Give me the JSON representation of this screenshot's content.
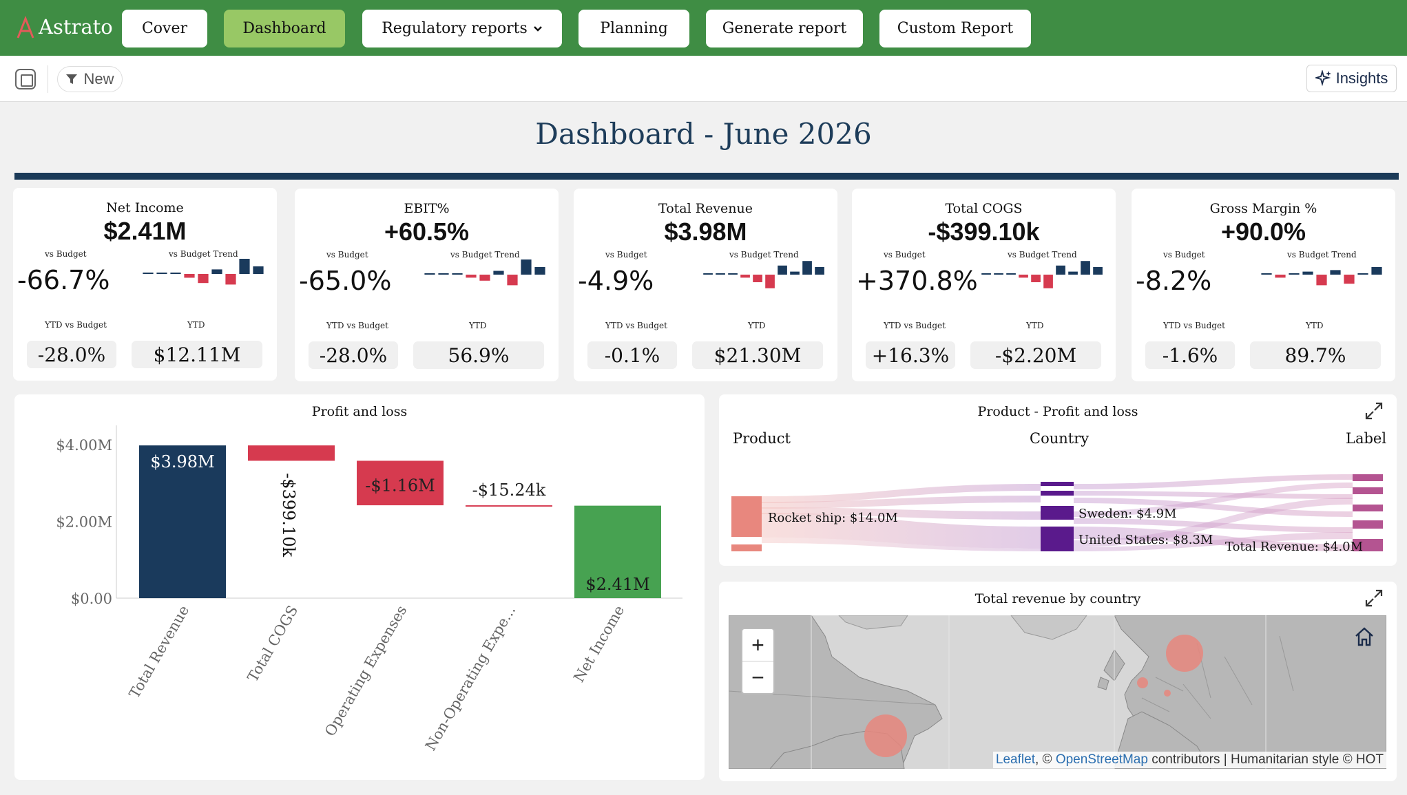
{
  "app": {
    "logo_text": "Astrato"
  },
  "nav": {
    "cover": "Cover",
    "dashboard": "Dashboard",
    "regulatory": "Regulatory reports",
    "planning": "Planning",
    "generate": "Generate report",
    "custom": "Custom Report"
  },
  "toolbar": {
    "new_label": "New",
    "insights_label": "Insights"
  },
  "page": {
    "title": "Dashboard - June 2026"
  },
  "kpi_labels": {
    "vs_budget": "vs Budget",
    "vs_budget_trend": "vs Budget Trend",
    "ytd_vs_budget": "YTD vs Budget",
    "ytd": "YTD"
  },
  "kpis": [
    {
      "name": "Net Income",
      "value": "$2.41M",
      "vs_budget": "-66.7%",
      "ytd_vs_budget": "-28.0%",
      "ytd": "$12.11M",
      "trend": [
        0,
        0,
        0,
        -0.25,
        -0.6,
        0.3,
        -0.7,
        1.0,
        0.5
      ]
    },
    {
      "name": "EBIT%",
      "value": "+60.5%",
      "vs_budget": "-65.0%",
      "ytd_vs_budget": "-28.0%",
      "ytd": "56.9%",
      "trend": [
        0,
        0,
        0,
        -0.2,
        -0.4,
        0.25,
        -0.7,
        1.0,
        0.5
      ]
    },
    {
      "name": "Total Revenue",
      "value": "$3.98M",
      "vs_budget": "-4.9%",
      "ytd_vs_budget": "-0.1%",
      "ytd": "$21.30M",
      "trend": [
        0,
        0,
        0,
        -0.2,
        -0.5,
        -0.9,
        0.6,
        0.2,
        0.9,
        0.5
      ]
    },
    {
      "name": "Total COGS",
      "value": "-$399.10k",
      "vs_budget": "+370.8%",
      "ytd_vs_budget": "+16.3%",
      "ytd": "-$2.20M",
      "trend": [
        0,
        0,
        0,
        -0.2,
        -0.5,
        -0.9,
        0.6,
        0.2,
        0.9,
        0.5
      ]
    },
    {
      "name": "Gross Margin %",
      "value": "+90.0%",
      "vs_budget": "-8.2%",
      "ytd_vs_budget": "-1.6%",
      "ytd": "89.7%",
      "trend": [
        0,
        -0.2,
        0,
        0.2,
        -0.7,
        0.3,
        -0.6,
        0,
        0.5
      ]
    }
  ],
  "colors": {
    "positive": "#1a3a5c",
    "negative": "#d63a4f",
    "green": "#47a251",
    "nav_green": "#3f8d44",
    "active_tab": "#98c865"
  },
  "pnl": {
    "title": "Profit and loss",
    "chart_data": {
      "type": "bar",
      "categories": [
        "Total Revenue",
        "Total COGS",
        "Operating Expenses",
        "Non-Operating Expe...",
        "Net Income"
      ],
      "series": [
        {
          "start": 0,
          "end": 3.98,
          "label": "$3.98M",
          "kind": "total"
        },
        {
          "start": 3.98,
          "end": 3.58,
          "label": "-$399.10k",
          "kind": "decrease"
        },
        {
          "start": 3.58,
          "end": 2.42,
          "label": "-$1.16M",
          "kind": "decrease"
        },
        {
          "start": 2.42,
          "end": 2.41,
          "label": "-$15.24k",
          "kind": "decrease"
        },
        {
          "start": 0,
          "end": 2.41,
          "label": "$2.41M",
          "kind": "final"
        }
      ],
      "yticks": [
        "$4.00M",
        "$2.00M",
        "$0.00"
      ],
      "ylim": [
        0,
        4.4
      ]
    }
  },
  "sankey": {
    "title": "Product - Profit and loss",
    "headers": {
      "product": "Product",
      "country": "Country",
      "label": "Label"
    },
    "labels": {
      "product": "Rocket ship: $14.0M",
      "country_a": "Sweden: $4.9M",
      "country_b": "United States: $8.3M",
      "total": "Total Revenue: $4.0M"
    }
  },
  "map": {
    "title": "Total revenue by country",
    "zoom_in": "+",
    "zoom_out": "−",
    "attribution": {
      "leaflet": "Leaflet",
      "sep1": ", © ",
      "osm": "OpenStreetMap",
      "rest": " contributors | Humanitarian style © HOT"
    }
  }
}
